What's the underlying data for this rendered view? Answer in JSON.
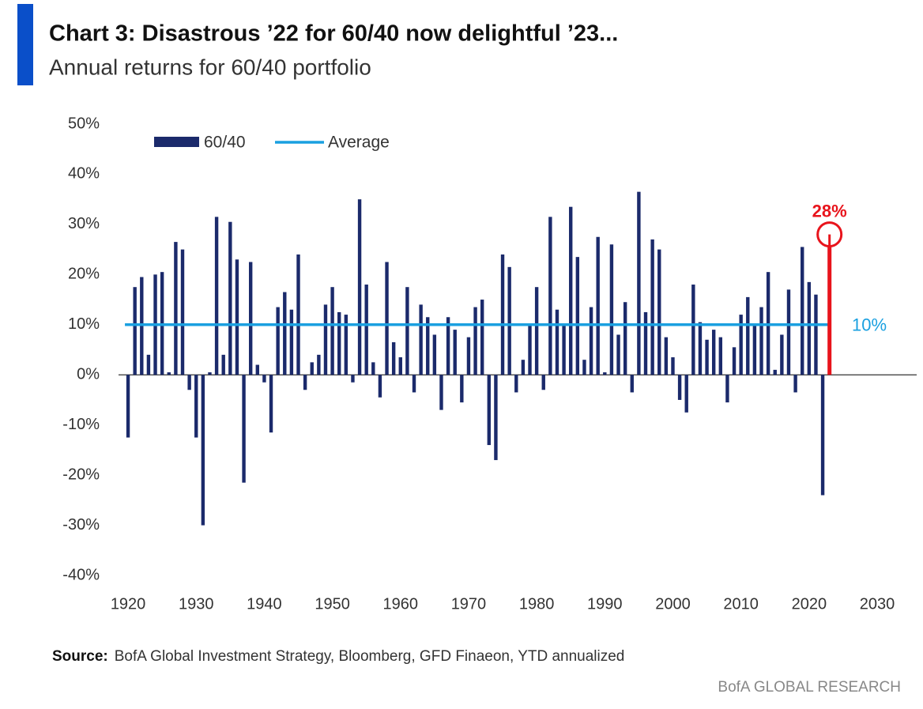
{
  "chart_data": {
    "type": "bar",
    "title": "Chart 3: Disastrous ’22 for 60/40 now delightful ’23...",
    "subtitle": "Annual returns for 60/40 portfolio",
    "series": [
      {
        "name": "60/40",
        "color": "#1b2a6b",
        "x": [
          1920,
          1921,
          1922,
          1923,
          1924,
          1925,
          1926,
          1927,
          1928,
          1929,
          1930,
          1931,
          1932,
          1933,
          1934,
          1935,
          1936,
          1937,
          1938,
          1939,
          1940,
          1941,
          1942,
          1943,
          1944,
          1945,
          1946,
          1947,
          1948,
          1949,
          1950,
          1951,
          1952,
          1953,
          1954,
          1955,
          1956,
          1957,
          1958,
          1959,
          1960,
          1961,
          1962,
          1963,
          1964,
          1965,
          1966,
          1967,
          1968,
          1969,
          1970,
          1971,
          1972,
          1973,
          1974,
          1975,
          1976,
          1977,
          1978,
          1979,
          1980,
          1981,
          1982,
          1983,
          1984,
          1985,
          1986,
          1987,
          1988,
          1989,
          1990,
          1991,
          1992,
          1993,
          1994,
          1995,
          1996,
          1997,
          1998,
          1999,
          2000,
          2001,
          2002,
          2003,
          2004,
          2005,
          2006,
          2007,
          2008,
          2009,
          2010,
          2011,
          2012,
          2013,
          2014,
          2015,
          2016,
          2017,
          2018,
          2019,
          2020,
          2021,
          2022
        ],
        "values": [
          -12.5,
          17.5,
          19.5,
          4,
          20,
          20.5,
          0.5,
          26.5,
          25,
          -3,
          -12.5,
          -30,
          0.5,
          31.5,
          4,
          30.5,
          23,
          -21.5,
          22.5,
          2,
          -1.5,
          -11.5,
          13.5,
          16.5,
          13,
          24,
          -3,
          2.5,
          4,
          14,
          17.5,
          12.5,
          12,
          -1.5,
          35,
          18,
          2.5,
          -4.5,
          22.5,
          6.5,
          3.5,
          17.5,
          -3.5,
          14,
          11.5,
          8,
          -7,
          11.5,
          9,
          -5.5,
          7.5,
          13.5,
          15,
          -14,
          -17,
          24,
          21.5,
          -3.5,
          3,
          10,
          17.5,
          -3,
          31.5,
          13,
          10,
          33.5,
          23.5,
          3,
          13.5,
          27.5,
          0.5,
          26,
          8,
          14.5,
          -3.5,
          36.5,
          12.5,
          27,
          25,
          7.5,
          3.5,
          -5,
          -7.5,
          18,
          10.5,
          7,
          9,
          7.5,
          -5.5,
          5.5,
          12,
          15.5,
          10,
          13.5,
          20.5,
          1,
          8,
          17,
          -3.5,
          25.5,
          18.5,
          16,
          -24
        ]
      }
    ],
    "average": {
      "name": "Average",
      "color": "#1aa0e0",
      "value": 10,
      "label": "10%"
    },
    "annotation": {
      "x": 2023,
      "value": 28,
      "label": "28%",
      "color": "#e8141c"
    },
    "xlim": [
      1918.6,
      2035.8
    ],
    "ylim": [
      -40,
      50
    ],
    "xticks": [
      1920,
      1930,
      1940,
      1950,
      1960,
      1970,
      1980,
      1990,
      2000,
      2010,
      2020,
      2030
    ],
    "yticks": [
      {
        "value": 50,
        "label": "50%"
      },
      {
        "value": 40,
        "label": "40%"
      },
      {
        "value": 30,
        "label": "30%"
      },
      {
        "value": 20,
        "label": "20%"
      },
      {
        "value": 10,
        "label": "10%"
      },
      {
        "value": 0,
        "label": "0%"
      },
      {
        "value": -10,
        "label": "-10%"
      },
      {
        "value": -20,
        "label": "-20%"
      },
      {
        "value": -30,
        "label": "-30%"
      },
      {
        "value": -40,
        "label": "-40%"
      }
    ],
    "source_label": "Source:",
    "source_text": "BofA Global Investment Strategy, Bloomberg, GFD Finaeon,  YTD annualized",
    "footer": "BofA GLOBAL RESEARCH"
  }
}
